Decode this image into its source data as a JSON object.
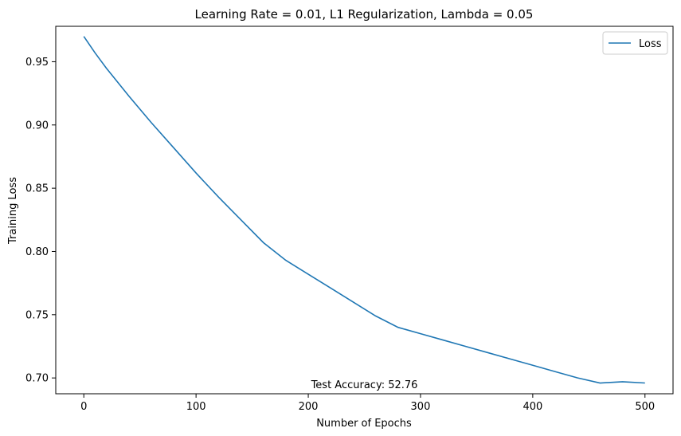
{
  "chart_data": {
    "type": "line",
    "title": "Learning Rate = 0.01, L1 Regularization, Lambda = 0.05",
    "xlabel": "Number of Epochs",
    "ylabel": "Training Loss",
    "xlim": [
      -25,
      525
    ],
    "ylim": [
      0.6875,
      0.978
    ],
    "xticks": [
      0,
      100,
      200,
      300,
      400,
      500
    ],
    "yticks": [
      0.7,
      0.75,
      0.8,
      0.85,
      0.9,
      0.95
    ],
    "grid": false,
    "legend_position": "top-right",
    "series": [
      {
        "name": "Loss",
        "color": "#1f77b4",
        "x": [
          0,
          10,
          20,
          40,
          60,
          80,
          100,
          120,
          140,
          160,
          180,
          200,
          220,
          240,
          260,
          280,
          300,
          320,
          340,
          360,
          380,
          400,
          420,
          440,
          460,
          480,
          500
        ],
        "y": [
          0.97,
          0.957,
          0.945,
          0.923,
          0.902,
          0.882,
          0.862,
          0.843,
          0.825,
          0.807,
          0.793,
          0.782,
          0.771,
          0.76,
          0.749,
          0.74,
          0.735,
          0.73,
          0.725,
          0.72,
          0.715,
          0.71,
          0.705,
          0.7,
          0.696,
          0.697,
          0.696
        ]
      }
    ],
    "annotation": {
      "text": "Test Accuracy: 52.76",
      "x": 250,
      "y": 0.6875
    }
  }
}
